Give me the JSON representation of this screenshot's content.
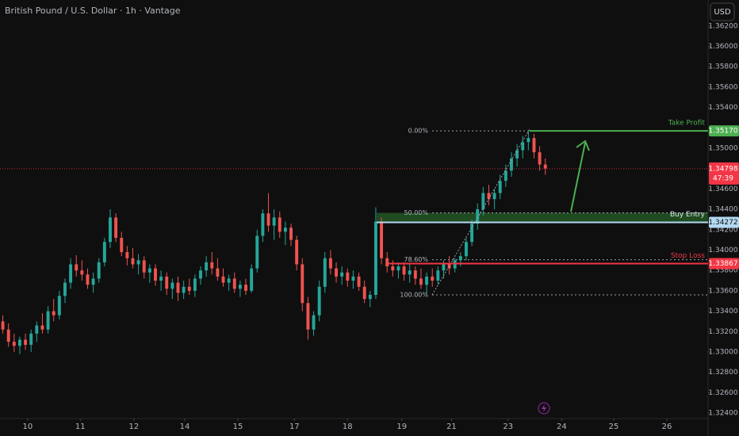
{
  "chart_data": {
    "type": "candlestick",
    "title": "British Pound / U.S. Dollar · 1h · Vantage",
    "currency": "USD",
    "up_color": "#26a69a",
    "down_color": "#ef5350",
    "candles": [
      [
        1.333,
        1.3336,
        1.3318,
        1.3322
      ],
      [
        1.3322,
        1.3328,
        1.3305,
        1.331
      ],
      [
        1.331,
        1.3318,
        1.33,
        1.3306
      ],
      [
        1.3306,
        1.3315,
        1.3298,
        1.3312
      ],
      [
        1.3312,
        1.3318,
        1.3302,
        1.3307
      ],
      [
        1.3307,
        1.3322,
        1.33,
        1.3318
      ],
      [
        1.3318,
        1.333,
        1.331,
        1.3326
      ],
      [
        1.3326,
        1.3338,
        1.3318,
        1.3322
      ],
      [
        1.3322,
        1.3345,
        1.3318,
        1.334
      ],
      [
        1.334,
        1.3352,
        1.333,
        1.3336
      ],
      [
        1.3336,
        1.336,
        1.3332,
        1.3355
      ],
      [
        1.3355,
        1.3372,
        1.3348,
        1.3368
      ],
      [
        1.3368,
        1.3392,
        1.3362,
        1.3386
      ],
      [
        1.3386,
        1.3395,
        1.3374,
        1.338
      ],
      [
        1.338,
        1.339,
        1.337,
        1.3376
      ],
      [
        1.3376,
        1.3382,
        1.3362,
        1.3366
      ],
      [
        1.3366,
        1.3378,
        1.3358,
        1.3372
      ],
      [
        1.3372,
        1.3392,
        1.3368,
        1.3388
      ],
      [
        1.3388,
        1.3412,
        1.3384,
        1.3408
      ],
      [
        1.3408,
        1.344,
        1.3402,
        1.3432
      ],
      [
        1.3432,
        1.3436,
        1.3408,
        1.3412
      ],
      [
        1.3412,
        1.3418,
        1.3394,
        1.3398
      ],
      [
        1.3398,
        1.3404,
        1.3385,
        1.3392
      ],
      [
        1.3392,
        1.3402,
        1.3382,
        1.3386
      ],
      [
        1.3386,
        1.3396,
        1.3376,
        1.339
      ],
      [
        1.339,
        1.3394,
        1.3372,
        1.3378
      ],
      [
        1.3378,
        1.3386,
        1.3368,
        1.3382
      ],
      [
        1.3382,
        1.3386,
        1.3365,
        1.337
      ],
      [
        1.337,
        1.338,
        1.336,
        1.3374
      ],
      [
        1.3374,
        1.3378,
        1.3356,
        1.3362
      ],
      [
        1.3362,
        1.3372,
        1.3352,
        1.3368
      ],
      [
        1.3368,
        1.3374,
        1.335,
        1.3358
      ],
      [
        1.3358,
        1.337,
        1.3352,
        1.3364
      ],
      [
        1.3364,
        1.3372,
        1.3356,
        1.336
      ],
      [
        1.336,
        1.3376,
        1.3354,
        1.3372
      ],
      [
        1.3372,
        1.3384,
        1.3366,
        1.338
      ],
      [
        1.338,
        1.3394,
        1.3374,
        1.3388
      ],
      [
        1.3388,
        1.3398,
        1.3376,
        1.3382
      ],
      [
        1.3382,
        1.3392,
        1.337,
        1.3374
      ],
      [
        1.3374,
        1.3382,
        1.3364,
        1.3368
      ],
      [
        1.3368,
        1.3376,
        1.336,
        1.3372
      ],
      [
        1.3372,
        1.3378,
        1.3358,
        1.3362
      ],
      [
        1.3362,
        1.337,
        1.3354,
        1.3366
      ],
      [
        1.3366,
        1.3372,
        1.3356,
        1.336
      ],
      [
        1.336,
        1.3386,
        1.3358,
        1.3382
      ],
      [
        1.3382,
        1.342,
        1.3378,
        1.3414
      ],
      [
        1.3414,
        1.344,
        1.3408,
        1.3436
      ],
      [
        1.3436,
        1.3456,
        1.3418,
        1.3424
      ],
      [
        1.3424,
        1.344,
        1.341,
        1.3432
      ],
      [
        1.3432,
        1.3438,
        1.3412,
        1.3418
      ],
      [
        1.3418,
        1.3428,
        1.3405,
        1.3422
      ],
      [
        1.3422,
        1.3426,
        1.3404,
        1.341
      ],
      [
        1.341,
        1.3414,
        1.338,
        1.3386
      ],
      [
        1.3386,
        1.3392,
        1.334,
        1.3348
      ],
      [
        1.3348,
        1.3354,
        1.3312,
        1.3322
      ],
      [
        1.3322,
        1.334,
        1.3316,
        1.3336
      ],
      [
        1.3336,
        1.337,
        1.333,
        1.3364
      ],
      [
        1.3364,
        1.3398,
        1.3358,
        1.3392
      ],
      [
        1.3392,
        1.34,
        1.3376,
        1.3382
      ],
      [
        1.3382,
        1.3388,
        1.3368,
        1.3374
      ],
      [
        1.3374,
        1.3384,
        1.3366,
        1.3378
      ],
      [
        1.3378,
        1.3382,
        1.3364,
        1.337
      ],
      [
        1.337,
        1.338,
        1.3362,
        1.3374
      ],
      [
        1.3374,
        1.3378,
        1.336,
        1.3364
      ],
      [
        1.3364,
        1.337,
        1.3348,
        1.3352
      ],
      [
        1.3352,
        1.336,
        1.3344,
        1.3356
      ],
      [
        1.3356,
        1.3442,
        1.3352,
        1.3428
      ],
      [
        1.3428,
        1.3432,
        1.3386,
        1.3392
      ],
      [
        1.3392,
        1.3398,
        1.3378,
        1.3384
      ],
      [
        1.3384,
        1.339,
        1.3374,
        1.338
      ],
      [
        1.338,
        1.3388,
        1.3372,
        1.3384
      ],
      [
        1.3384,
        1.3388,
        1.337,
        1.3376
      ],
      [
        1.3376,
        1.3386,
        1.3368,
        1.338
      ],
      [
        1.338,
        1.3384,
        1.3366,
        1.3372
      ],
      [
        1.3372,
        1.3382,
        1.3362,
        1.3366
      ],
      [
        1.3366,
        1.3378,
        1.3357,
        1.3374
      ],
      [
        1.3374,
        1.3382,
        1.3364,
        1.337
      ],
      [
        1.337,
        1.3384,
        1.3366,
        1.338
      ],
      [
        1.338,
        1.339,
        1.3372,
        1.3386
      ],
      [
        1.3386,
        1.3394,
        1.3376,
        1.3382
      ],
      [
        1.3382,
        1.3392,
        1.3378,
        1.339
      ],
      [
        1.339,
        1.3398,
        1.3384,
        1.3394
      ],
      [
        1.3394,
        1.3412,
        1.339,
        1.3408
      ],
      [
        1.3408,
        1.343,
        1.3404,
        1.3426
      ],
      [
        1.3426,
        1.3446,
        1.342,
        1.344
      ],
      [
        1.344,
        1.3462,
        1.3434,
        1.3456
      ],
      [
        1.3456,
        1.3464,
        1.3444,
        1.345
      ],
      [
        1.345,
        1.346,
        1.344,
        1.3456
      ],
      [
        1.3456,
        1.3474,
        1.345,
        1.3468
      ],
      [
        1.3468,
        1.3484,
        1.3462,
        1.3478
      ],
      [
        1.3478,
        1.3496,
        1.3472,
        1.349
      ],
      [
        1.349,
        1.3504,
        1.3482,
        1.3498
      ],
      [
        1.3498,
        1.3512,
        1.349,
        1.3506
      ],
      [
        1.3506,
        1.3517,
        1.3498,
        1.351
      ],
      [
        1.351,
        1.3514,
        1.349,
        1.3496
      ],
      [
        1.3496,
        1.3502,
        1.3478,
        1.3484
      ],
      [
        1.3484,
        1.349,
        1.3474,
        1.348
      ]
    ],
    "xlim": [
      -0.5,
      124.8
    ],
    "xticks": [
      {
        "value": 4.4,
        "label": "10"
      },
      {
        "value": 13.7,
        "label": "11"
      },
      {
        "value": 23.2,
        "label": "12"
      },
      {
        "value": 32.2,
        "label": "14"
      },
      {
        "value": 41.6,
        "label": "15"
      },
      {
        "value": 51.6,
        "label": "17"
      },
      {
        "value": 61.0,
        "label": "18"
      },
      {
        "value": 70.6,
        "label": "19"
      },
      {
        "value": 79.4,
        "label": "21"
      },
      {
        "value": 89.4,
        "label": "23"
      },
      {
        "value": 98.9,
        "label": "24"
      },
      {
        "value": 108.1,
        "label": "25"
      },
      {
        "value": 117.5,
        "label": "26"
      }
    ],
    "ylim": [
      1.32346,
      1.36455
    ],
    "yticks": [
      {
        "value": 1.324,
        "label": "1.32400"
      },
      {
        "value": 1.326,
        "label": "1.32600"
      },
      {
        "value": 1.328,
        "label": "1.32800"
      },
      {
        "value": 1.33,
        "label": "1.33000"
      },
      {
        "value": 1.332,
        "label": "1.33200"
      },
      {
        "value": 1.334,
        "label": "1.33400"
      },
      {
        "value": 1.336,
        "label": "1.33600"
      },
      {
        "value": 1.338,
        "label": "1.33800"
      },
      {
        "value": 1.34,
        "label": "1.34000"
      },
      {
        "value": 1.342,
        "label": "1.34200"
      },
      {
        "value": 1.344,
        "label": "1.34400"
      },
      {
        "value": 1.346,
        "label": "1.34600"
      },
      {
        "value": 1.35,
        "label": "1.35000"
      },
      {
        "value": 1.354,
        "label": "1.35400"
      },
      {
        "value": 1.356,
        "label": "1.35600"
      },
      {
        "value": 1.358,
        "label": "1.35800"
      },
      {
        "value": 1.36,
        "label": "1.36000"
      },
      {
        "value": 1.362,
        "label": "1.36200"
      }
    ],
    "last_price": {
      "value": 1.34798,
      "label": "1.34798",
      "countdown": "47:39",
      "color": "#f23645"
    },
    "levels": [
      {
        "name": "Take Profit",
        "value": 1.3517,
        "label": "1.35170",
        "color": "#4caf50"
      },
      {
        "name": "Buy Entry",
        "value": 1.34272,
        "label": "1.34272",
        "color": "#b3d9f2"
      },
      {
        "name": "Stop Loss",
        "value": 1.33867,
        "label": "1.33867",
        "color": "#f23645"
      }
    ],
    "fib_levels": [
      {
        "label": "0.00%",
        "value": 1.3517
      },
      {
        "label": "50.00%",
        "value": 1.34365
      },
      {
        "label": "78.60%",
        "value": 1.33905
      },
      {
        "label": "100.00%",
        "value": 1.3356
      }
    ]
  }
}
